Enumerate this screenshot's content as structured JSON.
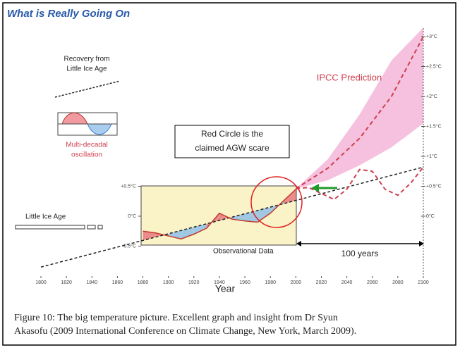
{
  "chart_data": {
    "type": "line",
    "title": "What is Really Going On",
    "xlabel": "Year",
    "xlim": [
      1800,
      2100
    ],
    "xticks": [
      1800,
      1820,
      1840,
      1860,
      1880,
      1900,
      1920,
      1940,
      1960,
      1980,
      2000,
      2020,
      2040,
      2060,
      2080,
      2100
    ],
    "ylim": [
      -1,
      3.2
    ],
    "yticks": [
      {
        "value": 0.5,
        "label": "+0.5°C"
      },
      {
        "value": 0,
        "label": "0°C"
      },
      {
        "value": -0.5,
        "label": "-0.5°C"
      }
    ],
    "y2ticks": [
      {
        "value": 3,
        "label": "+3°C"
      },
      {
        "value": 2.5,
        "label": "+2.5°C"
      },
      {
        "value": 2,
        "label": "+2°C"
      },
      {
        "value": 1.5,
        "label": "+1.5°C"
      },
      {
        "value": 1,
        "label": "+1°C"
      },
      {
        "value": 0.5,
        "label": "+0.5°C"
      },
      {
        "value": 0,
        "label": "0°C"
      }
    ],
    "trend": {
      "x": [
        1800,
        2100
      ],
      "values": [
        -0.85,
        0.82
      ],
      "color": "#222"
    },
    "observed": {
      "x": [
        1880,
        1890,
        1900,
        1910,
        1920,
        1930,
        1940,
        1950,
        1960,
        1970,
        1980,
        1990,
        2000
      ],
      "values": [
        -0.25,
        -0.28,
        -0.33,
        -0.38,
        -0.3,
        -0.2,
        0.05,
        -0.05,
        -0.08,
        -0.1,
        0.05,
        0.25,
        0.45
      ],
      "color": "#c0392b"
    },
    "oscillation": {
      "x": [
        2000,
        2010,
        2020,
        2030,
        2040,
        2050,
        2060,
        2070,
        2080,
        2090,
        2100
      ],
      "values": [
        0.46,
        0.48,
        0.38,
        0.28,
        0.45,
        0.78,
        0.75,
        0.45,
        0.35,
        0.55,
        0.82
      ],
      "color": "#d04050"
    },
    "ipcc": {
      "x": [
        2000,
        2025,
        2050,
        2075,
        2100
      ],
      "values": [
        0.46,
        0.8,
        1.3,
        2.0,
        3.0
      ],
      "color": "#d04050"
    },
    "band": {
      "x": [
        2000,
        2025,
        2050,
        2075,
        2100
      ],
      "low": [
        0.46,
        0.6,
        0.85,
        1.15,
        1.55
      ],
      "high": [
        0.46,
        0.95,
        1.7,
        2.6,
        3.15
      ],
      "color": "#f4b6d8"
    },
    "annotations": {
      "ipcc_label": "IPCC Prediction",
      "obs_label": "Observational Data",
      "circle_note": [
        "Red Circle is the",
        "claimed AGW scare"
      ],
      "recovery": [
        "Recovery from",
        "Little  Ice Age"
      ],
      "oscillation": [
        "Multi-decadal",
        "oscillation"
      ],
      "little_ice_age": "Little Ice Age",
      "span": "100 years"
    },
    "caption": [
      "Figure 10: The big temperature picture. Excellent graph and insight from Dr Syun",
      "Akasofu (2009 International Conference on Climate Change, New York, March 2009)."
    ]
  }
}
